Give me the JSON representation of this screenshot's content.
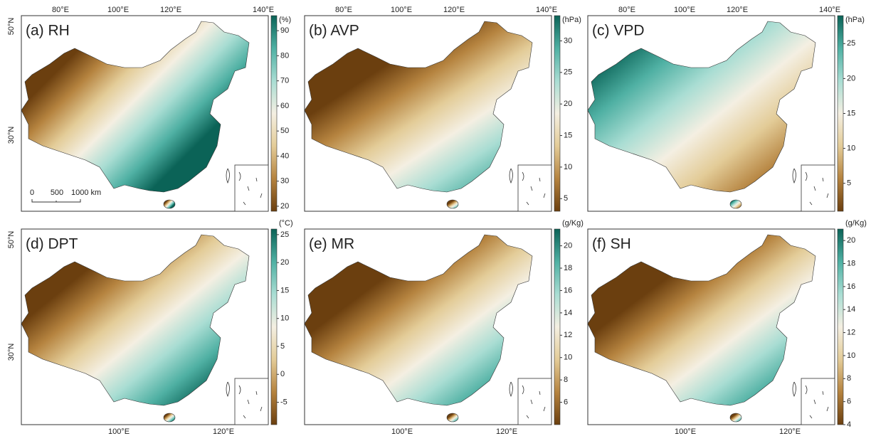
{
  "panels": [
    {
      "label": "(a) RH",
      "unit": "(%)",
      "colorbar": {
        "min": 18,
        "max": 96,
        "ticks": [
          20,
          30,
          40,
          50,
          60,
          70,
          80,
          90
        ]
      }
    },
    {
      "label": "(b) AVP",
      "unit": "(hPa)",
      "colorbar": {
        "min": 3,
        "max": 34,
        "ticks": [
          5,
          10,
          15,
          20,
          25,
          30
        ]
      }
    },
    {
      "label": "(c) VPD",
      "unit": "(hPa)",
      "colorbar": {
        "min": 1,
        "max": 29,
        "ticks": [
          5,
          10,
          15,
          20,
          25
        ]
      }
    },
    {
      "label": "(d) DPT",
      "unit": "(°C)",
      "colorbar": {
        "min": -9,
        "max": 26,
        "ticks": [
          -5,
          0,
          5,
          10,
          15,
          20,
          25
        ]
      }
    },
    {
      "label": "(e) MR",
      "unit": "(g/Kg)",
      "colorbar": {
        "min": 4,
        "max": 21.5,
        "ticks": [
          6,
          8,
          10,
          12,
          14,
          16,
          18,
          20
        ]
      }
    },
    {
      "label": "(f) SH",
      "unit": "(g/Kg)",
      "colorbar": {
        "min": 4,
        "max": 21,
        "ticks": [
          4,
          6,
          8,
          10,
          12,
          14,
          16,
          18,
          20
        ]
      }
    }
  ],
  "longitude_top": [
    "80°E",
    "100°E",
    "120°E",
    "140°E"
  ],
  "longitude_bottom": [
    "100°E",
    "120°E"
  ],
  "latitude": [
    "50°N",
    "30°N"
  ],
  "scale_bar": [
    "0",
    "500",
    "1000 km"
  ],
  "colormap": [
    "#6b3f0f",
    "#b5833f",
    "#e3cc98",
    "#f4efe2",
    "#a9ddd3",
    "#4fb0a3",
    "#0b6357"
  ]
}
